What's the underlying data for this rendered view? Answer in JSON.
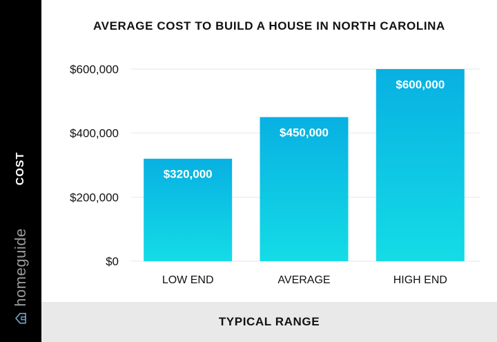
{
  "chart_data": {
    "type": "bar",
    "title": "AVERAGE COST TO BUILD A HOUSE IN NORTH CAROLINA",
    "xlabel": "TYPICAL RANGE",
    "ylabel": "COST",
    "categories": [
      "LOW END",
      "AVERAGE",
      "HIGH END"
    ],
    "values": [
      320000,
      450000,
      600000
    ],
    "data_labels": [
      "$320,000",
      "$450,000",
      "$600,000"
    ],
    "ylim": [
      0,
      600000
    ],
    "yticks": [
      0,
      200000,
      400000,
      600000
    ],
    "ytick_labels": [
      "$0",
      "$200,000",
      "$400,000",
      "$600,000"
    ],
    "grid": true,
    "legend": "none",
    "colors": {
      "bar_top": "#08b0e2",
      "bar_bottom": "#14dce6",
      "grid": "#e6e6e6"
    }
  },
  "brand": {
    "name": "homeguide",
    "icon": "house-icon"
  }
}
